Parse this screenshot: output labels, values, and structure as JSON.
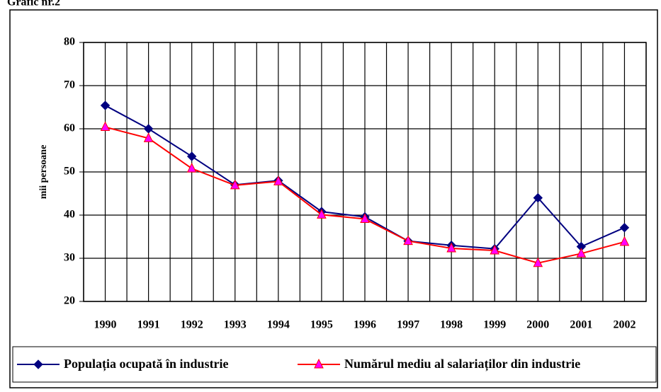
{
  "chart_data": {
    "type": "line",
    "title": "Grafic nr.2",
    "y_label": "mii  persoane",
    "categories": [
      "1990",
      "1991",
      "1992",
      "1993",
      "1994",
      "1995",
      "1996",
      "1997",
      "1998",
      "1999",
      "2000",
      "2001",
      "2002"
    ],
    "series": [
      {
        "name": "Populația ocupată în industrie",
        "color": "#000080",
        "marker": "diamond",
        "marker_fill": "#000080",
        "values": [
          65.4,
          60,
          53.6,
          47,
          48,
          40.8,
          39.6,
          34,
          33,
          32.2,
          44,
          32.7,
          37.1
        ]
      },
      {
        "name": "Numărul mediu al salariaților din industrie",
        "color": "#ff0000",
        "marker": "triangle",
        "marker_fill": "#ff00ff",
        "values": [
          60.4,
          57.8,
          50.8,
          46.9,
          47.8,
          40.1,
          39.1,
          34,
          32.3,
          31.8,
          28.9,
          31.1,
          33.8
        ]
      }
    ],
    "ylim": [
      20,
      80
    ],
    "yticks": [
      20,
      30,
      40,
      50,
      60,
      70,
      80
    ],
    "grid": true,
    "legend": "bottom"
  }
}
